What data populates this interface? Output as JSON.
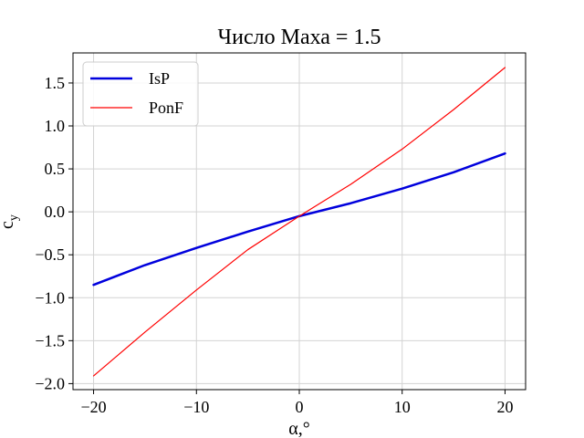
{
  "chart_data": {
    "type": "line",
    "title": "Число Маха = 1.5",
    "xlabel": "α,°",
    "ylabel": "c",
    "ylabel_sub": "y",
    "xlim": [
      -22,
      22
    ],
    "ylim": [
      -2.07,
      1.85
    ],
    "xticks": [
      -20,
      -10,
      0,
      10,
      20
    ],
    "xtick_labels": [
      "−20",
      "−10",
      "0",
      "10",
      "20"
    ],
    "yticks": [
      -2.0,
      -1.5,
      -1.0,
      -0.5,
      0.0,
      0.5,
      1.0,
      1.5
    ],
    "ytick_labels": [
      "−2.0",
      "−1.5",
      "−1.0",
      "−0.5",
      "0.0",
      "0.5",
      "1.0",
      "1.5"
    ],
    "grid": true,
    "legend_position": "top-left",
    "x": [
      -20,
      -15,
      -10,
      -5,
      0,
      5,
      10,
      15,
      20
    ],
    "series": [
      {
        "name": "IsP",
        "color": "#0000dd",
        "width": 2.5,
        "values": [
          -0.85,
          -0.62,
          -0.42,
          -0.23,
          -0.05,
          0.1,
          0.27,
          0.46,
          0.68
        ]
      },
      {
        "name": "PonF",
        "color": "#ff0000",
        "width": 1.2,
        "values": [
          -1.91,
          -1.4,
          -0.91,
          -0.44,
          -0.05,
          0.32,
          0.73,
          1.19,
          1.68
        ]
      }
    ]
  }
}
